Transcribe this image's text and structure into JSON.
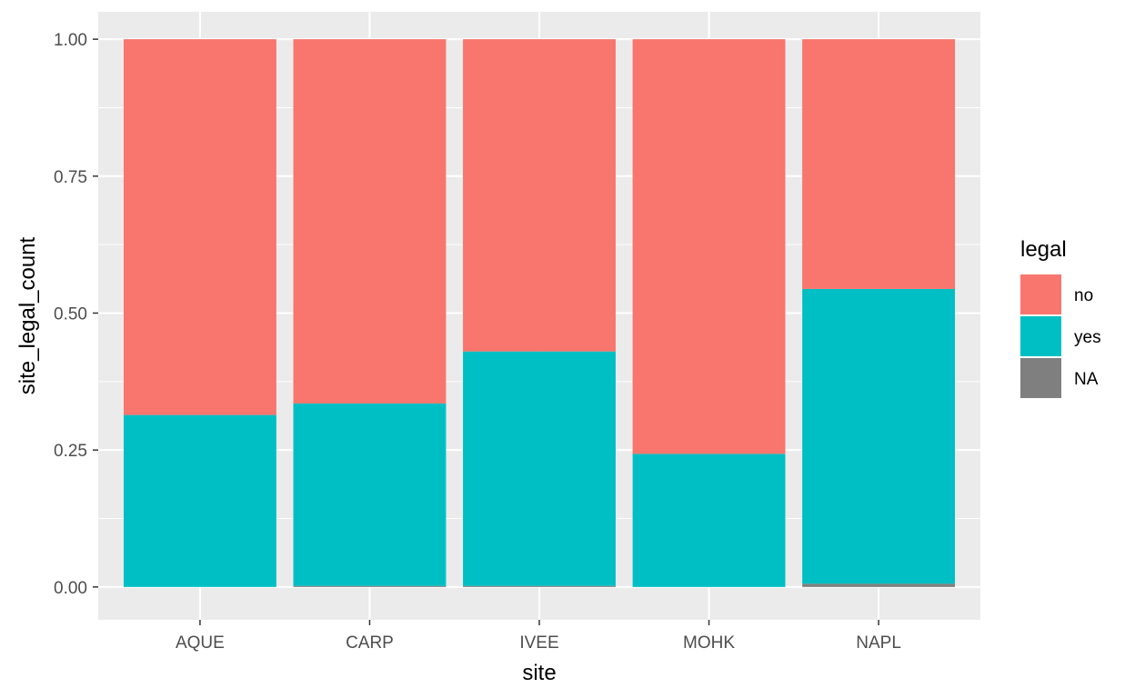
{
  "chart_data": {
    "type": "bar",
    "stacked": true,
    "xlabel": "site",
    "ylabel": "site_legal_count",
    "categories": [
      "AQUE",
      "CARP",
      "IVEE",
      "MOHK",
      "NAPL"
    ],
    "series": [
      {
        "name": "NA",
        "color": "#7f7f7f",
        "values": [
          0.0,
          0.002,
          0.002,
          0.0,
          0.006
        ]
      },
      {
        "name": "yes",
        "color": "#00bfc4",
        "values": [
          0.314,
          0.333,
          0.428,
          0.243,
          0.538
        ]
      },
      {
        "name": "no",
        "color": "#f8766d",
        "values": [
          0.686,
          0.665,
          0.57,
          0.757,
          0.456
        ]
      }
    ],
    "ylim": [
      -0.06,
      1.05
    ],
    "yticks": [
      0.0,
      0.25,
      0.5,
      0.75,
      1.0
    ],
    "ytick_labels": [
      "0.00",
      "0.25",
      "0.50",
      "0.75",
      "1.00"
    ],
    "grid": true,
    "legend": {
      "title": "legal",
      "placement": "right",
      "entries": [
        {
          "label": "no",
          "color": "#f8766d"
        },
        {
          "label": "yes",
          "color": "#00bfc4"
        },
        {
          "label": "NA",
          "color": "#7f7f7f"
        }
      ]
    },
    "panel_background": "#ebebeb",
    "grid_color": "#ffffff"
  }
}
